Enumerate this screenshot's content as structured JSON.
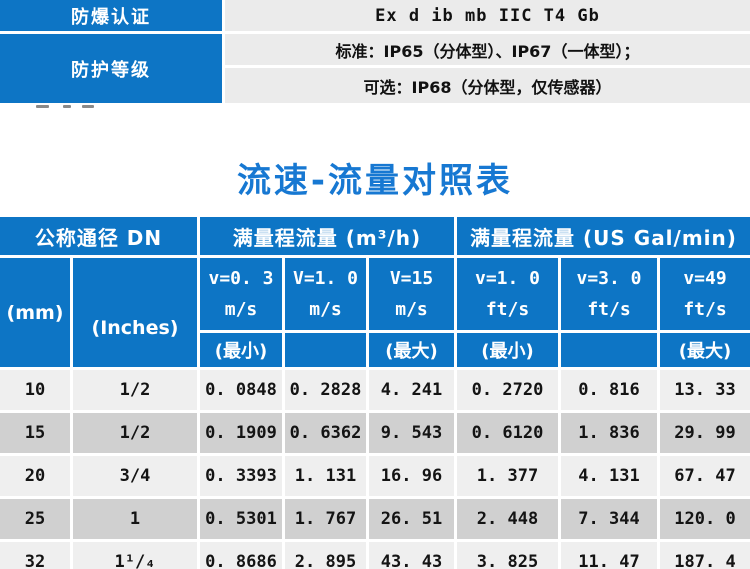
{
  "colors": {
    "accent_blue": "#0d75c5",
    "title_blue": "#1778d2",
    "spec_value_bg": "#ebebeb",
    "row_light": "#efefef",
    "row_dark": "#d0d0d0",
    "header_text": "#ffffff",
    "body_text": "#141414"
  },
  "spec_table": {
    "row1_label": "防爆认证",
    "row1_value": "Ex d ib mb IIC T4 Gb",
    "row2_label": "防护等级",
    "row2_value_line1": "标准：IP65（分体型）、IP67（一体型）；",
    "row2_value_line2": "可选：IP68（分体型，仅传感器）"
  },
  "chart_data": {
    "type": "table",
    "title": "流速-流量对照表",
    "column_groups": [
      {
        "label": "公称通径 DN",
        "span": 2
      },
      {
        "label": "满量程流量 (m³/h)",
        "span": 3
      },
      {
        "label": "满量程流量 (US Gal/min)",
        "span": 3
      }
    ],
    "columns": [
      {
        "h1": "(mm)",
        "h2": "",
        "h3": ""
      },
      {
        "h1": "(Inches)",
        "h2": "",
        "h3": ""
      },
      {
        "h1": "v=0. 3",
        "h2": "m/s",
        "h3": "(最小)"
      },
      {
        "h1": "V=1. 0",
        "h2": "m/s",
        "h3": ""
      },
      {
        "h1": "V=15",
        "h2": "m/s",
        "h3": "(最大)"
      },
      {
        "h1": "v=1. 0",
        "h2": "ft/s",
        "h3": "(最小)"
      },
      {
        "h1": "v=3. 0",
        "h2": "ft/s",
        "h3": ""
      },
      {
        "h1": "v=49",
        "h2": "ft/s",
        "h3": "(最大)"
      }
    ],
    "rows": [
      [
        "10",
        "1/2",
        "0. 0848",
        "0. 2828",
        "4. 241",
        "0. 2720",
        "0. 816",
        "13. 33"
      ],
      [
        "15",
        "1/2",
        "0. 1909",
        "0. 6362",
        "9. 543",
        "0. 6120",
        "1. 836",
        "29. 99"
      ],
      [
        "20",
        "3/4",
        "0. 3393",
        "1. 131",
        "16. 96",
        "1. 377",
        "4. 131",
        "67. 47"
      ],
      [
        "25",
        "1",
        "0. 5301",
        "1. 767",
        "26. 51",
        "2. 448",
        "7. 344",
        "120. 0"
      ],
      [
        "32",
        "1¹/₄",
        "0. 8686",
        "2. 895",
        "43. 43",
        "3. 825",
        "11. 47",
        "187. 4"
      ]
    ]
  }
}
